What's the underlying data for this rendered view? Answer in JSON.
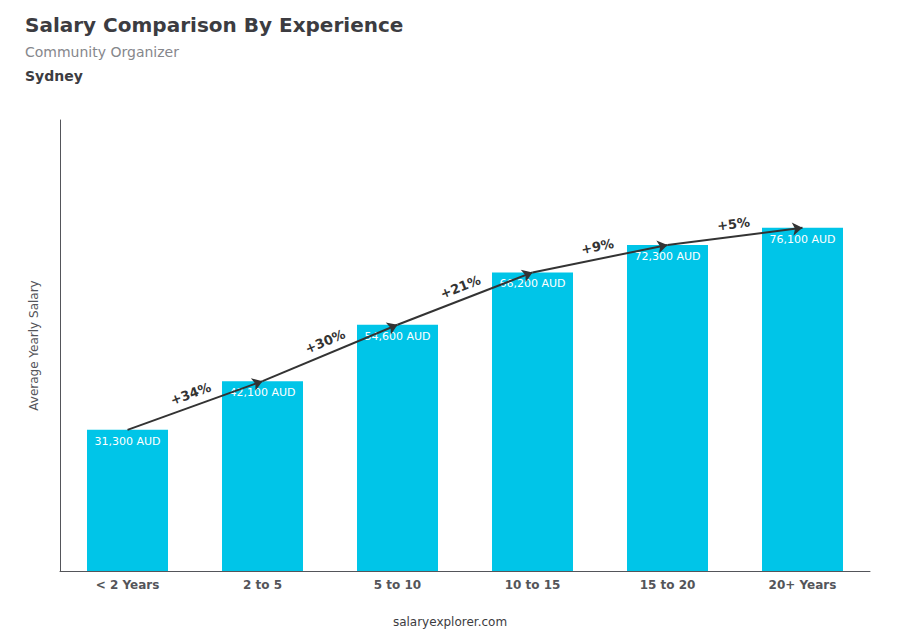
{
  "chart_data": {
    "type": "bar",
    "title": "Salary Comparison By Experience",
    "subtitle": "Community Organizer",
    "city": "Sydney",
    "y_label": "Average Yearly Salary",
    "footer": "salaryexplorer.com",
    "categories": [
      "< 2 Years",
      "2 to 5",
      "5 to 10",
      "10 to 15",
      "15 to 20",
      "20+ Years"
    ],
    "values": [
      31300,
      42100,
      54600,
      66200,
      72300,
      76100
    ],
    "value_labels": [
      "31,300 AUD",
      "42,100 AUD",
      "54,600 AUD",
      "66,200 AUD",
      "72,300 AUD",
      "76,100 AUD"
    ],
    "data_labels": true,
    "color": "#00C5E8",
    "ylim": [
      0,
      100000
    ],
    "tick_labels": "x",
    "grid": false,
    "annotations": [
      {
        "text": "+34%",
        "from": "< 2 Years",
        "to": "2 to 5"
      },
      {
        "text": "+30%",
        "from": "2 to 5",
        "to": "5 to 10"
      },
      {
        "text": "+21%",
        "from": "5 to 10",
        "to": "10 to 15"
      },
      {
        "text": "+9%",
        "from": "10 to 15",
        "to": "15 to 20"
      },
      {
        "text": "+5%",
        "from": "15 to 20",
        "to": "20+ Years"
      }
    ]
  }
}
